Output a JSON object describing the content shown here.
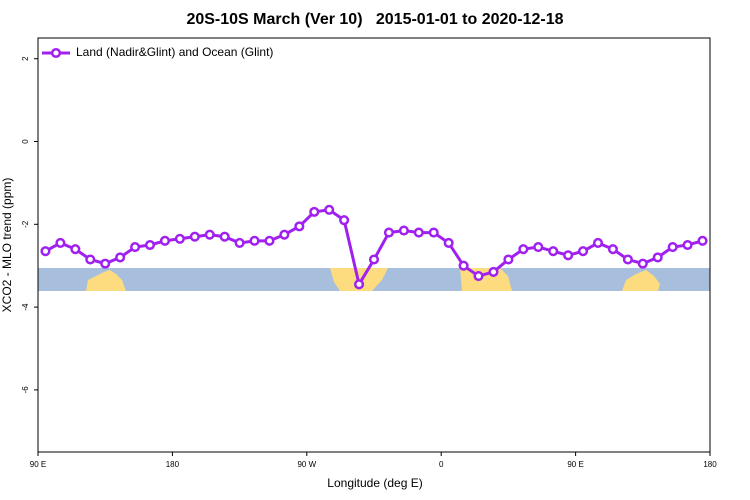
{
  "chart_data": {
    "type": "line",
    "title": "20S-10S March (Ver 10)   2015-01-01 to 2020-12-18",
    "x_label": "Longitude (deg E)",
    "y_label": "XCO2 - MLO trend (ppm)",
    "x": [
      95,
      105,
      115,
      125,
      135,
      145,
      155,
      165,
      175,
      185,
      195,
      205,
      215,
      225,
      235,
      245,
      255,
      265,
      275,
      285,
      295,
      305,
      315,
      325,
      335,
      345,
      355,
      365,
      375,
      385,
      395,
      405,
      415,
      425,
      435,
      445,
      455,
      465,
      475,
      485,
      495,
      505,
      515,
      525,
      535
    ],
    "series": [
      {
        "name": "Land (Nadir&Glint) and Ocean (Glint)",
        "color": "#a020f0",
        "values": [
          -2.65,
          -2.45,
          -2.6,
          -2.85,
          -2.95,
          -2.8,
          -2.55,
          -2.5,
          -2.4,
          -2.35,
          -2.3,
          -2.25,
          -2.3,
          -2.45,
          -2.4,
          -2.4,
          -2.25,
          -2.05,
          -1.7,
          -1.65,
          -1.9,
          -3.45,
          -2.85,
          -2.2,
          -2.15,
          -2.2,
          -2.2,
          -2.45,
          -3.0,
          -3.25,
          -3.15,
          -2.85,
          -2.6,
          -2.55,
          -2.65,
          -2.75,
          -2.65,
          -2.45,
          -2.6,
          -2.85,
          -2.95,
          -2.8,
          -2.55,
          -2.5,
          -2.4
        ]
      }
    ],
    "xlim": [
      90,
      540
    ],
    "xticks": [
      {
        "value": 90,
        "label": "90 E"
      },
      {
        "value": 180,
        "label": "180"
      },
      {
        "value": 270,
        "label": "90 W"
      },
      {
        "value": 360,
        "label": "0"
      },
      {
        "value": 450,
        "label": "90 E"
      },
      {
        "value": 540,
        "label": "180"
      }
    ],
    "ylim": [
      -7.5,
      2.5
    ],
    "yticks": [
      2,
      0,
      -2,
      -4,
      -6
    ],
    "legend": "top-left"
  }
}
